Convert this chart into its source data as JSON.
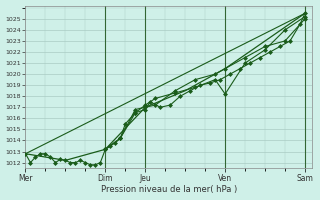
{
  "xlabel": "Pression niveau de la mer( hPa )",
  "bg_color": "#cff0e8",
  "grid_color": "#aaccc4",
  "line_color": "#1a5c1a",
  "vline_color": "#336633",
  "ylim": [
    1011.5,
    1026.2
  ],
  "yticks": [
    1012,
    1013,
    1014,
    1015,
    1016,
    1017,
    1018,
    1019,
    1020,
    1021,
    1022,
    1023,
    1024,
    1025
  ],
  "day_labels": [
    "Mer",
    "Dim",
    "Jeu",
    "Ven",
    "Sam"
  ],
  "day_positions": [
    0,
    96,
    144,
    240,
    336
  ],
  "xlim": [
    0,
    345
  ],
  "series1_x": [
    0,
    6,
    12,
    18,
    24,
    30,
    36,
    42,
    48,
    54,
    60,
    66,
    72,
    78,
    84,
    90,
    96,
    102,
    108,
    114,
    120,
    132,
    144,
    150,
    162,
    174,
    186,
    198,
    210,
    222,
    234,
    246,
    258,
    270,
    282,
    294,
    306,
    318,
    330,
    336
  ],
  "series1_y": [
    1012.8,
    1012.0,
    1012.5,
    1012.8,
    1012.8,
    1012.5,
    1012.0,
    1012.3,
    1012.2,
    1012.0,
    1012.0,
    1012.2,
    1012.0,
    1011.8,
    1011.8,
    1012.0,
    1013.2,
    1013.5,
    1013.8,
    1014.2,
    1015.5,
    1016.5,
    1016.8,
    1017.5,
    1017.0,
    1017.2,
    1018.0,
    1018.5,
    1019.0,
    1019.2,
    1019.5,
    1020.0,
    1020.5,
    1021.0,
    1021.5,
    1022.0,
    1022.5,
    1023.0,
    1024.5,
    1025.5
  ],
  "series2_x": [
    0,
    48,
    96,
    144,
    192,
    240,
    336
  ],
  "series2_y": [
    1012.8,
    1012.2,
    1013.2,
    1017.0,
    1018.5,
    1020.5,
    1025.5
  ],
  "series3_x": [
    0,
    336
  ],
  "series3_y": [
    1012.8,
    1025.5
  ],
  "series4_x": [
    96,
    114,
    132,
    144,
    156,
    180,
    204,
    228,
    240,
    264,
    288,
    312,
    336
  ],
  "series4_y": [
    1013.2,
    1014.2,
    1016.5,
    1017.2,
    1017.8,
    1018.3,
    1018.8,
    1019.5,
    1018.2,
    1021.0,
    1022.2,
    1024.0,
    1025.2
  ],
  "series5_x": [
    96,
    114,
    132,
    144,
    156,
    180,
    204,
    228,
    240,
    264,
    288,
    312,
    336
  ],
  "series5_y": [
    1013.2,
    1014.2,
    1016.8,
    1017.0,
    1017.2,
    1018.5,
    1019.5,
    1020.0,
    1020.5,
    1021.5,
    1022.5,
    1023.0,
    1025.0
  ]
}
